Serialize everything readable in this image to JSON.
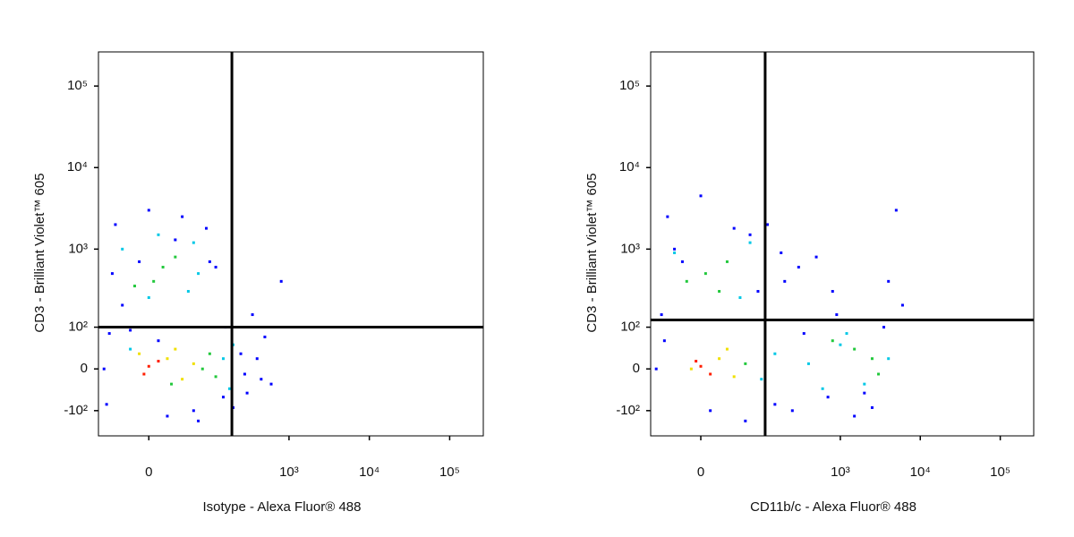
{
  "chart_data": [
    {
      "type": "scatter",
      "scale": "biexponential",
      "x_label": "Isotype - Alexa Fluor® 488",
      "y_label": "CD3 - Brilliant Violet™ 605",
      "xlim": [
        -72,
        262144
      ],
      "ylim": [
        -220,
        262144
      ],
      "xticks": [
        0,
        {
          "value": 1000,
          "label": "10³"
        },
        {
          "value": 10000,
          "label": "10⁴"
        },
        {
          "value": 100000,
          "label": "10⁵"
        }
      ],
      "yticks": [
        {
          "value": -100,
          "label": "-10²"
        },
        0,
        {
          "value": 100,
          "label": "10²"
        },
        {
          "value": 1000,
          "label": "10³"
        },
        {
          "value": 10000,
          "label": "10⁴"
        },
        {
          "value": 100000,
          "label": "10⁵"
        }
      ],
      "gates": {
        "x": 193,
        "y": 100
      },
      "series": [
        {
          "color": "#0000ff",
          "x": [
            -60,
            -50,
            250,
            300,
            400,
            500,
            600,
            350,
            -40,
            90,
            120,
            -55,
            20,
            60,
            0,
            -30,
            40,
            100,
            150,
            -45,
            200,
            800,
            450,
            30,
            -20,
            70,
            -10,
            160,
            10,
            280
          ],
          "values": [
            0,
            80,
            30,
            -50,
            20,
            70,
            -30,
            150,
            2000,
            1800,
            600,
            -80,
            -120,
            -100,
            3000,
            200,
            2500,
            700,
            -60,
            500,
            -90,
            400,
            -20,
            1300,
            90,
            -140,
            700,
            100,
            60,
            -10
          ]
        },
        {
          "color": "#00c8e6",
          "x": [
            150,
            180,
            -30,
            50,
            60,
            0,
            200,
            -20,
            10,
            70
          ],
          "values": [
            20,
            -40,
            1000,
            300,
            1200,
            250,
            50,
            40,
            1500,
            500
          ]
        },
        {
          "color": "#22c83c",
          "x": [
            80,
            100,
            5,
            15,
            -15,
            30,
            25,
            120
          ],
          "values": [
            0,
            30,
            400,
            600,
            350,
            800,
            -30,
            -15
          ]
        },
        {
          "color": "#f0e000",
          "x": [
            20,
            40,
            -10,
            60,
            30
          ],
          "values": [
            20,
            -20,
            30,
            10,
            40
          ]
        },
        {
          "color": "#ff1e00",
          "x": [
            0,
            10,
            -5
          ],
          "values": [
            5,
            15,
            -10
          ]
        }
      ]
    },
    {
      "type": "scatter",
      "scale": "biexponential",
      "x_label": "CD11b/c - Alexa Fluor® 488",
      "y_label": "CD3 - Brilliant Violet™ 605",
      "xlim": [
        -72,
        262144
      ],
      "ylim": [
        -220,
        262144
      ],
      "xticks": [
        0,
        {
          "value": 1000,
          "label": "10³"
        },
        {
          "value": 10000,
          "label": "10⁴"
        },
        {
          "value": 100000,
          "label": "10⁵"
        }
      ],
      "yticks": [
        {
          "value": -100,
          "label": "-10²"
        },
        0,
        {
          "value": 100,
          "label": "10²"
        },
        {
          "value": 1000,
          "label": "10³"
        },
        {
          "value": 10000,
          "label": "10⁴"
        },
        {
          "value": 100000,
          "label": "10⁵"
        }
      ],
      "gates": {
        "x": 112,
        "y": 127
      },
      "series": [
        {
          "color": "#0000ff",
          "x": [
            -60,
            -50,
            200,
            300,
            500,
            5000,
            6000,
            -40,
            90,
            0,
            -30,
            40,
            150,
            3500,
            250,
            700,
            1500,
            2500,
            -45,
            120,
            800,
            60,
            10,
            4000,
            -20,
            70,
            350,
            2000,
            180,
            900
          ],
          "values": [
            0,
            150,
            400,
            600,
            800,
            3000,
            200,
            2500,
            300,
            4500,
            1000,
            1800,
            -80,
            100,
            -100,
            -60,
            -120,
            -90,
            60,
            2000,
            300,
            -140,
            -100,
            400,
            700,
            1500,
            80,
            -50,
            900,
            150
          ]
        },
        {
          "color": "#00c8e6",
          "x": [
            100,
            150,
            400,
            1000,
            2000,
            4000,
            -30,
            50,
            70,
            600,
            1200
          ],
          "values": [
            -20,
            30,
            10,
            50,
            -30,
            20,
            900,
            250,
            1200,
            -40,
            80
          ]
        },
        {
          "color": "#22c83c",
          "x": [
            60,
            5,
            20,
            -15,
            1500,
            2500,
            800,
            30,
            3000
          ],
          "values": [
            10,
            500,
            300,
            400,
            40,
            20,
            60,
            700,
            -10
          ]
        },
        {
          "color": "#f0e000",
          "x": [
            20,
            -10,
            40,
            30
          ],
          "values": [
            20,
            0,
            -15,
            40
          ]
        },
        {
          "color": "#ff1e00",
          "x": [
            0,
            10,
            -5
          ],
          "values": [
            5,
            -10,
            15
          ]
        }
      ]
    }
  ]
}
